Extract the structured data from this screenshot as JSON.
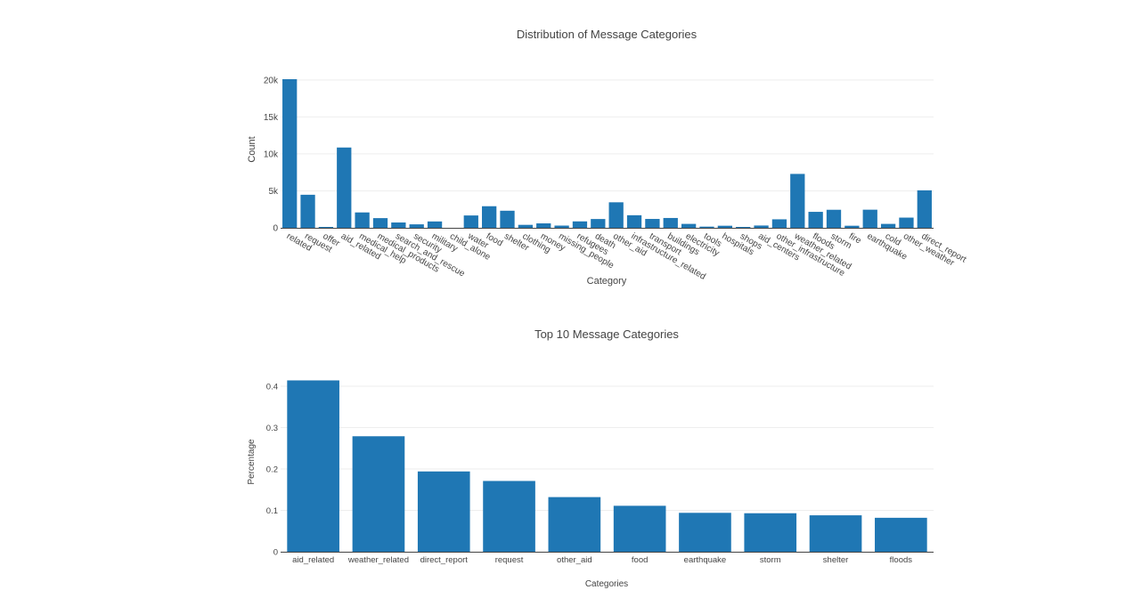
{
  "chart_data": [
    {
      "type": "bar",
      "title": "Distribution of Message Categories",
      "xlabel": "Category",
      "ylabel": "Count",
      "ylim": [
        0,
        20100
      ],
      "yticks": [
        0,
        5000,
        10000,
        15000,
        20000
      ],
      "ytick_labels": [
        "0",
        "5k",
        "10k",
        "15k",
        "20k"
      ],
      "grid": true,
      "color": "#1f77b4",
      "categories": [
        "related",
        "request",
        "offer",
        "aid_related",
        "medical_help",
        "medical_products",
        "search_and_rescue",
        "security",
        "military",
        "child_alone",
        "water",
        "food",
        "shelter",
        "clothing",
        "money",
        "missing_people",
        "refugees",
        "death",
        "other_aid",
        "infrastructure_related",
        "transport",
        "buildings",
        "electricity",
        "tools",
        "hospitals",
        "shops",
        "aid_centers",
        "other_infrastructure",
        "weather_related",
        "floods",
        "storm",
        "fire",
        "earthquake",
        "cold",
        "other_weather",
        "direct_report"
      ],
      "values": [
        20100,
        4470,
        120,
        10860,
        2080,
        1310,
        720,
        470,
        860,
        0,
        1670,
        2920,
        2310,
        400,
        600,
        300,
        870,
        1190,
        3450,
        1700,
        1200,
        1330,
        530,
        160,
        280,
        120,
        310,
        1150,
        7290,
        2160,
        2440,
        280,
        2450,
        530,
        1380,
        5070
      ]
    },
    {
      "type": "bar",
      "title": "Top 10 Message Categories",
      "xlabel": "Categories",
      "ylabel": "Percentage",
      "ylim": [
        0,
        0.415
      ],
      "yticks": [
        0,
        0.1,
        0.2,
        0.3,
        0.4
      ],
      "ytick_labels": [
        "0",
        "0.1",
        "0.2",
        "0.3",
        "0.4"
      ],
      "grid": true,
      "color": "#1f77b4",
      "categories": [
        "aid_related",
        "weather_related",
        "direct_report",
        "request",
        "other_aid",
        "food",
        "earthquake",
        "storm",
        "shelter",
        "floods"
      ],
      "values": [
        0.414,
        0.279,
        0.194,
        0.171,
        0.132,
        0.111,
        0.094,
        0.093,
        0.088,
        0.082
      ]
    }
  ]
}
